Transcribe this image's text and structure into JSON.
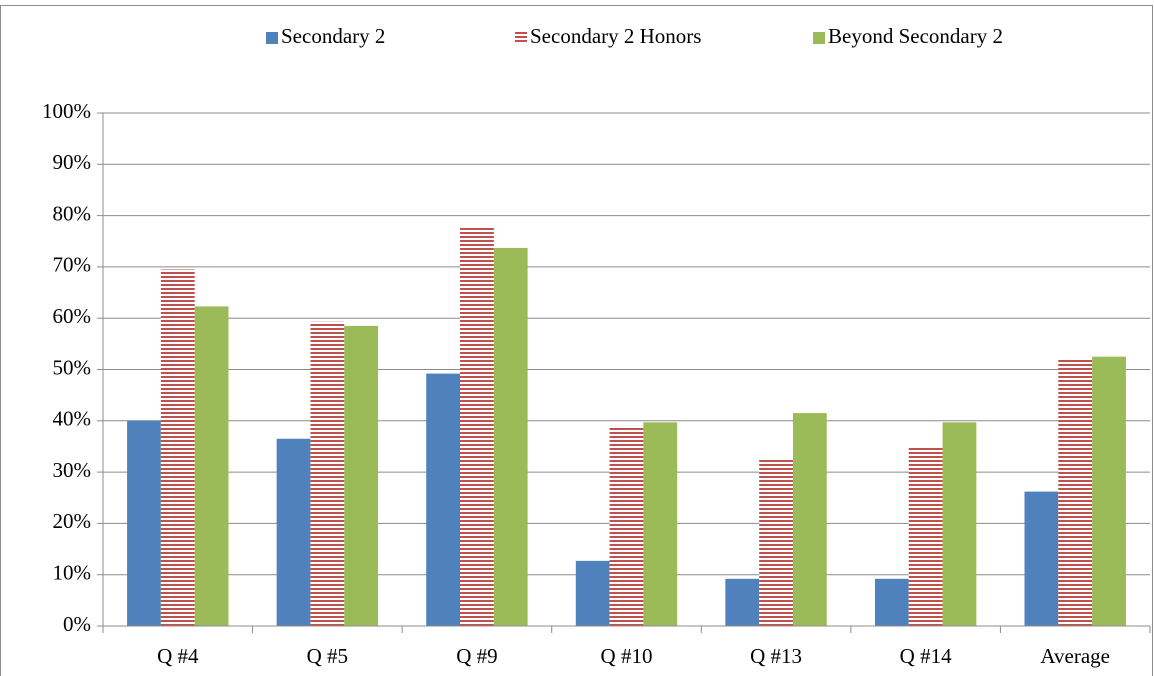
{
  "chart_data": {
    "type": "bar",
    "categories": [
      "Q #4",
      "Q #5",
      "Q #9",
      "Q #10",
      "Q #13",
      "Q #14",
      "Average"
    ],
    "series": [
      {
        "name": "Secondary 2",
        "color": "#4f81bd",
        "pattern": "solid",
        "values": [
          40,
          36.5,
          49.2,
          12.7,
          9.2,
          9.2,
          26.2
        ]
      },
      {
        "name": "Secondary 2 Honors",
        "color": "#c0504d",
        "pattern": "horizontal-stripes",
        "values": [
          69.5,
          59.3,
          77.7,
          39,
          32.7,
          35,
          52.2
        ]
      },
      {
        "name": "Beyond Secondary 2",
        "color": "#9bbb59",
        "pattern": "solid",
        "values": [
          62.3,
          58.5,
          73.7,
          39.7,
          41.5,
          39.7,
          52.5
        ]
      }
    ],
    "ylim": [
      0,
      100
    ],
    "yticks": [
      {
        "value": 0,
        "label": "0%"
      },
      {
        "value": 10,
        "label": "10%"
      },
      {
        "value": 20,
        "label": "20%"
      },
      {
        "value": 30,
        "label": "30%"
      },
      {
        "value": 40,
        "label": "40%"
      },
      {
        "value": 50,
        "label": "50%"
      },
      {
        "value": 60,
        "label": "60%"
      },
      {
        "value": 70,
        "label": "70%"
      },
      {
        "value": 80,
        "label": "80%"
      },
      {
        "value": 90,
        "label": "90%"
      },
      {
        "value": 100,
        "label": "100%"
      }
    ],
    "grid": true,
    "legend": "top"
  }
}
